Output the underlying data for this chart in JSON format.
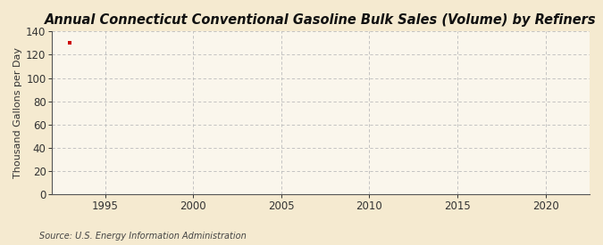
{
  "title": "Annual Connecticut Conventional Gasoline Bulk Sales (Volume) by Refiners",
  "ylabel": "Thousand Gallons per Day",
  "source": "Source: U.S. Energy Information Administration",
  "background_color": "#f5ead0",
  "plot_background_color": "#faf6ec",
  "data_x": [
    1993
  ],
  "data_y": [
    130.0
  ],
  "data_color": "#cc0000",
  "xlim": [
    1992.0,
    2022.5
  ],
  "ylim": [
    0,
    140
  ],
  "yticks": [
    0,
    20,
    40,
    60,
    80,
    100,
    120,
    140
  ],
  "xticks": [
    1995,
    2000,
    2005,
    2010,
    2015,
    2020
  ],
  "grid_color": "#bbbbbb",
  "tick_color": "#333333",
  "spine_color": "#555555",
  "title_fontsize": 10.5,
  "label_fontsize": 8,
  "tick_fontsize": 8.5,
  "source_fontsize": 7
}
